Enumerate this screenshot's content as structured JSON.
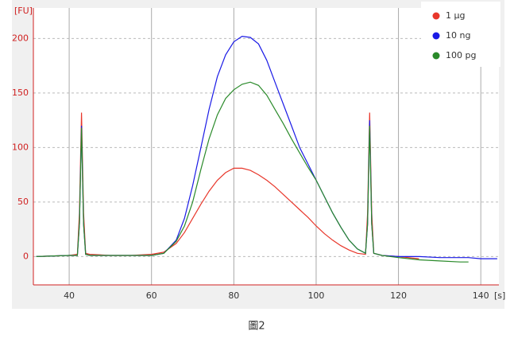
{
  "chart_data": {
    "type": "line",
    "y_label": "[FU]",
    "x_label": "[s]",
    "caption": "圖2",
    "x": [
      32,
      40,
      42,
      42.5,
      43,
      43.5,
      44,
      45,
      50,
      55,
      60,
      63,
      66,
      68,
      70,
      72,
      74,
      76,
      78,
      80,
      82,
      84,
      86,
      88,
      90,
      92,
      94,
      96,
      98,
      100,
      102,
      104,
      106,
      108,
      110,
      112,
      112.5,
      113,
      113.5,
      114,
      116,
      120,
      125,
      130,
      135,
      137,
      140,
      144
    ],
    "series": [
      {
        "name": "1 µg",
        "color": "#e8372b",
        "values": [
          0,
          1,
          2,
          40,
          132,
          40,
          3,
          2,
          1,
          1,
          2,
          4,
          12,
          22,
          35,
          48,
          60,
          70,
          77,
          81,
          81,
          79,
          75,
          70,
          64,
          57,
          50,
          43,
          36,
          28,
          21,
          15,
          10,
          6,
          3,
          2,
          40,
          132,
          40,
          3,
          1,
          0,
          -2,
          null,
          null,
          null,
          null,
          null
        ]
      },
      {
        "name": "10 ng",
        "color": "#1a1ae6",
        "values": [
          0,
          1,
          1,
          30,
          120,
          30,
          2,
          1,
          1,
          1,
          1,
          3,
          15,
          35,
          65,
          100,
          135,
          165,
          185,
          197,
          202,
          201,
          195,
          180,
          160,
          140,
          120,
          100,
          85,
          70,
          55,
          40,
          27,
          15,
          7,
          3,
          30,
          125,
          30,
          3,
          1,
          0,
          0,
          -1,
          -1,
          -1,
          -2,
          -2
        ]
      },
      {
        "name": "100 pg",
        "color": "#2a8a2a",
        "values": [
          0,
          1,
          1,
          30,
          118,
          30,
          2,
          1,
          1,
          1,
          1,
          3,
          14,
          28,
          50,
          80,
          108,
          130,
          145,
          153,
          158,
          160,
          157,
          148,
          135,
          122,
          108,
          95,
          82,
          70,
          55,
          40,
          27,
          15,
          7,
          3,
          30,
          120,
          30,
          3,
          1,
          -1,
          -3,
          -4,
          -5,
          -5,
          null,
          null
        ]
      }
    ],
    "xlim": [
      31.3,
      144.4
    ],
    "ylim": [
      -26,
      228
    ],
    "xticks": [
      40,
      60,
      80,
      100,
      120,
      140
    ],
    "yticks": [
      0,
      50,
      100,
      150,
      200
    ],
    "grid": true,
    "legend": "top-right"
  }
}
